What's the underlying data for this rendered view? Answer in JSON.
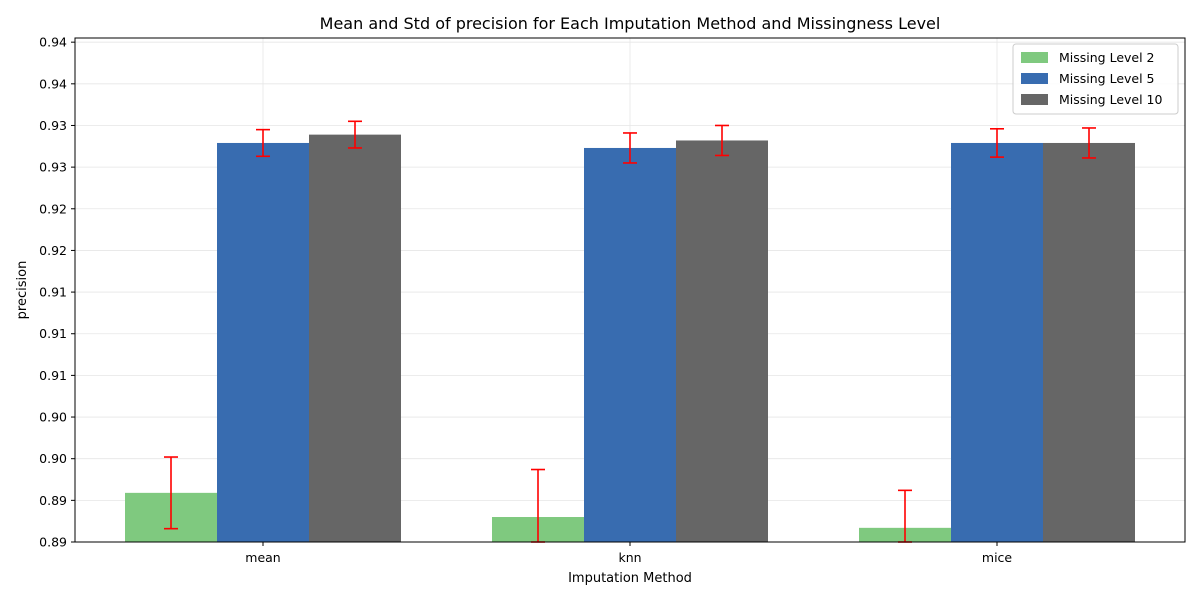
{
  "chart_data": {
    "type": "bar",
    "title": "Mean and Std of precision for Each Imputation Method and Missingness Level",
    "xlabel": "Imputation Method",
    "ylabel": "precision",
    "categories": [
      "mean",
      "knn",
      "mice"
    ],
    "ylim": [
      0.887,
      0.9475
    ],
    "yticks": {
      "values": [
        0.887,
        0.892,
        0.897,
        0.902,
        0.907,
        0.912,
        0.917,
        0.922,
        0.927,
        0.932,
        0.937,
        0.942,
        0.947
      ],
      "labels": [
        "0.89",
        "0.89",
        "0.90",
        "0.90",
        "0.91",
        "0.91",
        "0.91",
        "0.92",
        "0.92",
        "0.93",
        "0.93",
        "0.94",
        "0.94"
      ]
    },
    "grid": true,
    "legend_position": "top-right",
    "error_bar_color": "#ff0000",
    "series": [
      {
        "name": "Missing Level 2",
        "color": "#7fc97f",
        "values": [
          0.8929,
          0.89,
          0.8887
        ],
        "errors": [
          0.0043,
          0.0057,
          0.0045
        ]
      },
      {
        "name": "Missing Level 5",
        "color": "#386cb0",
        "values": [
          0.9349,
          0.9343,
          0.9349
        ],
        "errors": [
          0.0016,
          0.0018,
          0.0017
        ]
      },
      {
        "name": "Missing Level 10",
        "color": "#666666",
        "values": [
          0.9359,
          0.9352,
          0.9349
        ],
        "errors": [
          0.0016,
          0.0018,
          0.0018
        ]
      }
    ]
  }
}
